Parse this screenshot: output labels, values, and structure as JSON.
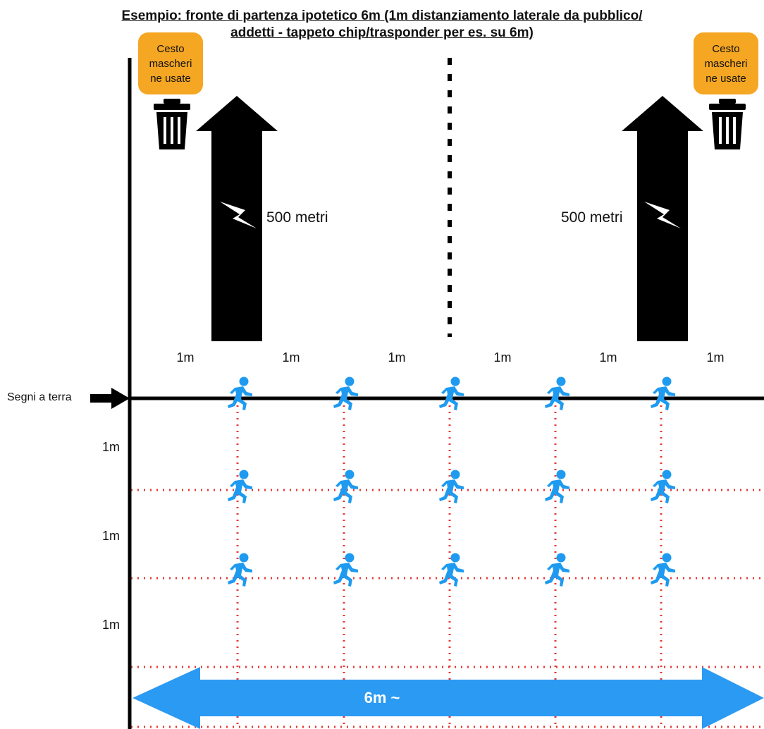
{
  "title": {
    "line1": "Esempio: fronte di partenza ipotetico 6m (1m distanziamento laterale da pubblico/",
    "line2": "addetti - tappeto chip/trasponder per es. su 6m)"
  },
  "bins": [
    {
      "label": "Cesto\nmascheri\nne usate",
      "icon": "trash-can-icon"
    },
    {
      "label": "Cesto\nmascheri\nne usate",
      "icon": "trash-can-icon"
    }
  ],
  "arrows": [
    {
      "label": "500 metri",
      "icon": "lightning-bolt-icon",
      "direction": "up"
    },
    {
      "label": "500 metri",
      "icon": "lightning-bolt-icon",
      "direction": "up"
    }
  ],
  "spacing_labels": [
    "1m",
    "1m",
    "1m",
    "1m",
    "1m",
    "1m"
  ],
  "row_spacing_labels": [
    "1m",
    "1m",
    "1m"
  ],
  "ground_marks_label": "Segni a terra",
  "width_label": "6m ~",
  "runner_icon": "runner-icon",
  "runner_grid": {
    "rows": 3,
    "columns": 5
  },
  "colors": {
    "bin_label": "#f5a623",
    "runner": "#1e9bf0",
    "width_arrow": "#2b9af3",
    "grid_line": "#e53935",
    "arrow": "#000000"
  }
}
